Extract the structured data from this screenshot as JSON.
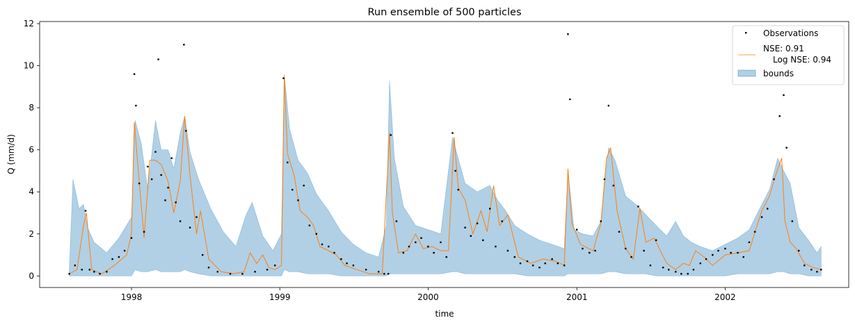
{
  "chart_data": {
    "type": "line",
    "title": "Run ensemble of 500 particles",
    "xlabel": "time",
    "ylabel": "Q (mm/d)",
    "xlim": [
      "1997-05-20",
      "2002-11-01"
    ],
    "ylim": [
      -0.55,
      12.1
    ],
    "grid": false,
    "legend_position": "top-right",
    "x_ticks": [
      {
        "date": "1998-01-01",
        "label": "1998"
      },
      {
        "date": "1999-01-01",
        "label": "1999"
      },
      {
        "date": "2000-01-01",
        "label": "2000"
      },
      {
        "date": "2001-01-01",
        "label": "2001"
      },
      {
        "date": "2002-01-01",
        "label": "2002"
      }
    ],
    "y_ticks": [
      0,
      2,
      4,
      6,
      8,
      10,
      12
    ],
    "legend": [
      {
        "label": "Observations",
        "kind": "marker"
      },
      {
        "label": "NSE: 0.91",
        "label2": "Log NSE: 0.94",
        "kind": "line"
      },
      {
        "label": "bounds",
        "kind": "patch"
      }
    ],
    "colors": {
      "observations": "#000000",
      "simulation": "#ff7f0e",
      "bounds_fill": "#1f77b4",
      "bounds_alpha": 0.35
    },
    "series_observations": {
      "x": [
        "1997-08-01",
        "1997-08-15",
        "1997-09-01",
        "1997-09-10",
        "1997-09-20",
        "1997-10-01",
        "1997-10-15",
        "1997-11-01",
        "1997-11-15",
        "1997-12-01",
        "1997-12-15",
        "1998-01-01",
        "1998-01-08",
        "1998-01-12",
        "1998-01-20",
        "1998-02-01",
        "1998-02-10",
        "1998-02-20",
        "1998-03-01",
        "1998-03-08",
        "1998-03-15",
        "1998-03-25",
        "1998-04-01",
        "1998-04-10",
        "1998-04-20",
        "1998-05-01",
        "1998-05-10",
        "1998-05-15",
        "1998-05-25",
        "1998-06-10",
        "1998-06-25",
        "1998-07-10",
        "1998-08-01",
        "1998-09-01",
        "1998-10-01",
        "1998-11-01",
        "1998-12-01",
        "1998-12-20",
        "1999-01-10",
        "1999-01-20",
        "1999-02-01",
        "1999-02-15",
        "1999-03-01",
        "1999-03-15",
        "1999-04-01",
        "1999-04-15",
        "1999-05-01",
        "1999-05-15",
        "1999-06-01",
        "1999-06-15",
        "1999-07-01",
        "1999-08-01",
        "1999-09-01",
        "1999-09-15",
        "1999-09-25",
        "1999-10-01",
        "1999-10-15",
        "1999-11-01",
        "1999-11-15",
        "1999-12-01",
        "1999-12-15",
        "2000-01-01",
        "2000-01-15",
        "2000-02-01",
        "2000-02-15",
        "2000-03-01",
        "2000-03-08",
        "2000-03-15",
        "2000-04-01",
        "2000-04-15",
        "2000-05-01",
        "2000-05-15",
        "2000-06-01",
        "2000-06-15",
        "2000-07-01",
        "2000-07-15",
        "2000-08-01",
        "2000-08-15",
        "2000-09-01",
        "2000-09-15",
        "2000-10-01",
        "2000-10-15",
        "2000-11-01",
        "2000-11-15",
        "2000-12-01",
        "2000-12-10",
        "2000-12-15",
        "2001-01-01",
        "2001-01-15",
        "2001-02-01",
        "2001-02-15",
        "2001-03-01",
        "2001-03-10",
        "2001-03-20",
        "2001-04-01",
        "2001-04-15",
        "2001-05-01",
        "2001-05-15",
        "2001-06-01",
        "2001-06-15",
        "2001-07-01",
        "2001-07-15",
        "2001-08-01",
        "2001-08-15",
        "2001-09-01",
        "2001-09-15",
        "2001-10-01",
        "2001-10-15",
        "2001-11-01",
        "2001-11-15",
        "2001-12-01",
        "2001-12-15",
        "2002-01-01",
        "2002-01-15",
        "2002-02-01",
        "2002-02-15",
        "2002-03-01",
        "2002-03-15",
        "2002-04-01",
        "2002-04-15",
        "2002-05-01",
        "2002-05-15",
        "2002-05-25",
        "2002-06-01",
        "2002-06-15",
        "2002-07-01",
        "2002-07-15",
        "2002-08-01",
        "2002-08-15",
        "2002-08-25"
      ],
      "y": [
        0.1,
        0.5,
        0.3,
        3.1,
        0.3,
        0.2,
        0.1,
        0.2,
        0.8,
        0.9,
        1.2,
        1.8,
        9.6,
        8.1,
        4.4,
        2.1,
        5.2,
        4.6,
        5.9,
        10.3,
        4.8,
        3.6,
        4.2,
        5.6,
        3.5,
        2.6,
        11.0,
        6.9,
        2.3,
        2.8,
        1.0,
        0.4,
        0.2,
        0.1,
        0.1,
        0.2,
        0.3,
        0.5,
        9.4,
        5.4,
        4.1,
        3.6,
        4.3,
        2.4,
        2.0,
        1.5,
        1.4,
        1.1,
        0.8,
        0.6,
        0.5,
        0.3,
        0.2,
        0.1,
        0.1,
        6.7,
        2.6,
        1.1,
        1.4,
        1.6,
        1.8,
        1.4,
        1.1,
        1.6,
        0.9,
        6.8,
        5.0,
        4.1,
        2.3,
        1.9,
        2.5,
        1.7,
        3.2,
        1.4,
        2.6,
        1.2,
        0.9,
        0.6,
        0.7,
        0.5,
        0.4,
        0.6,
        0.8,
        0.6,
        0.5,
        11.5,
        8.4,
        2.2,
        1.3,
        1.1,
        1.2,
        2.6,
        4.6,
        8.1,
        4.3,
        2.1,
        1.3,
        0.9,
        3.3,
        1.2,
        0.5,
        1.7,
        0.4,
        0.3,
        0.2,
        0.1,
        0.1,
        0.3,
        0.6,
        0.8,
        1.0,
        1.2,
        1.3,
        1.1,
        1.1,
        0.9,
        1.6,
        2.1,
        2.8,
        3.2,
        4.6,
        7.6,
        8.6,
        6.1,
        2.6,
        1.2,
        0.5,
        0.3,
        0.2,
        0.3
      ]
    },
    "series_simulation": {
      "name": "NSE: 0.91",
      "x": [
        "1997-08-01",
        "1997-08-20",
        "1997-09-05",
        "1997-09-12",
        "1997-09-25",
        "1997-10-20",
        "1997-11-20",
        "1997-12-20",
        "1998-01-01",
        "1998-01-08",
        "1998-01-20",
        "1998-02-01",
        "1998-02-15",
        "1998-03-01",
        "1998-03-15",
        "1998-04-01",
        "1998-04-15",
        "1998-05-01",
        "1998-05-12",
        "1998-05-25",
        "1998-06-10",
        "1998-06-20",
        "1998-07-10",
        "1998-08-10",
        "1998-09-10",
        "1998-10-05",
        "1998-10-20",
        "1998-11-05",
        "1998-11-20",
        "1998-12-05",
        "1998-12-20",
        "1999-01-05",
        "1999-01-12",
        "1999-01-20",
        "1999-02-05",
        "1999-02-20",
        "1999-03-10",
        "1999-03-25",
        "1999-04-10",
        "1999-05-01",
        "1999-05-20",
        "1999-06-10",
        "1999-07-10",
        "1999-08-10",
        "1999-09-10",
        "1999-09-28",
        "1999-10-05",
        "1999-10-20",
        "1999-11-10",
        "1999-12-01",
        "1999-12-20",
        "2000-01-10",
        "2000-02-01",
        "2000-02-20",
        "2000-03-05",
        "2000-03-15",
        "2000-04-01",
        "2000-04-20",
        "2000-05-10",
        "2000-05-25",
        "2000-06-10",
        "2000-06-25",
        "2000-07-15",
        "2000-08-10",
        "2000-09-10",
        "2000-10-10",
        "2000-11-10",
        "2000-12-01",
        "2000-12-10",
        "2000-12-20",
        "2001-01-10",
        "2001-02-10",
        "2001-03-01",
        "2001-03-15",
        "2001-03-25",
        "2001-04-10",
        "2001-05-01",
        "2001-05-20",
        "2001-06-05",
        "2001-06-20",
        "2001-07-10",
        "2001-08-10",
        "2001-09-01",
        "2001-09-20",
        "2001-10-05",
        "2001-10-20",
        "2001-11-10",
        "2001-12-01",
        "2002-01-01",
        "2002-02-01",
        "2002-03-01",
        "2002-04-01",
        "2002-04-20",
        "2002-05-05",
        "2002-05-20",
        "2002-05-28",
        "2002-06-10",
        "2002-06-25",
        "2002-07-15",
        "2002-08-05",
        "2002-08-25"
      ],
      "y": [
        0.1,
        0.3,
        2.4,
        3.0,
        0.3,
        0.1,
        0.5,
        1.0,
        2.0,
        7.3,
        4.5,
        1.8,
        5.5,
        5.5,
        5.3,
        4.5,
        3.0,
        4.5,
        7.6,
        4.8,
        2.0,
        3.1,
        0.8,
        0.2,
        0.1,
        0.2,
        1.1,
        0.6,
        1.0,
        0.4,
        0.3,
        0.5,
        9.5,
        5.8,
        4.8,
        3.1,
        2.8,
        2.4,
        1.4,
        1.2,
        1.0,
        0.5,
        0.3,
        0.1,
        0.1,
        6.8,
        3.0,
        1.1,
        1.2,
        2.0,
        1.3,
        1.4,
        1.2,
        1.2,
        6.6,
        4.2,
        3.6,
        2.0,
        3.1,
        2.1,
        4.3,
        2.4,
        2.9,
        0.9,
        0.6,
        0.8,
        0.7,
        0.5,
        5.1,
        2.5,
        1.5,
        1.2,
        2.5,
        5.6,
        6.1,
        3.1,
        1.3,
        0.8,
        3.2,
        1.6,
        1.8,
        0.6,
        0.3,
        0.6,
        0.5,
        1.2,
        0.9,
        0.5,
        1.0,
        1.1,
        1.2,
        3.1,
        3.8,
        4.8,
        5.6,
        2.6,
        1.6,
        1.3,
        0.6,
        0.4,
        0.3
      ]
    },
    "series_bounds": {
      "name": "bounds",
      "x": [
        "1997-08-01",
        "1997-08-10",
        "1997-08-25",
        "1997-09-05",
        "1997-09-15",
        "1997-10-01",
        "1997-11-01",
        "1997-12-01",
        "1998-01-01",
        "1998-01-10",
        "1998-01-25",
        "1998-02-10",
        "1998-03-01",
        "1998-03-15",
        "1998-04-01",
        "1998-04-15",
        "1998-05-01",
        "1998-05-12",
        "1998-05-25",
        "1998-06-15",
        "1998-07-15",
        "1998-08-15",
        "1998-09-15",
        "1998-10-10",
        "1998-10-25",
        "1998-11-20",
        "1998-12-15",
        "1999-01-05",
        "1999-01-12",
        "1999-01-25",
        "1999-02-15",
        "1999-03-10",
        "1999-04-01",
        "1999-05-01",
        "1999-06-01",
        "1999-07-01",
        "1999-08-01",
        "1999-09-01",
        "1999-09-20",
        "1999-09-28",
        "1999-10-10",
        "1999-11-01",
        "1999-12-01",
        "2000-01-01",
        "2000-02-01",
        "2000-03-01",
        "2000-03-12",
        "2000-04-01",
        "2000-05-01",
        "2000-06-01",
        "2000-06-20",
        "2000-07-10",
        "2000-08-01",
        "2000-09-01",
        "2000-10-01",
        "2000-11-01",
        "2000-12-01",
        "2000-12-10",
        "2000-12-25",
        "2001-01-15",
        "2001-02-10",
        "2001-03-01",
        "2001-03-20",
        "2001-04-05",
        "2001-05-01",
        "2001-06-01",
        "2001-06-20",
        "2001-07-15",
        "2001-08-10",
        "2001-09-01",
        "2001-09-20",
        "2001-10-10",
        "2001-11-01",
        "2001-12-01",
        "2002-01-01",
        "2002-02-01",
        "2002-03-01",
        "2002-04-01",
        "2002-04-20",
        "2002-05-10",
        "2002-05-25",
        "2002-06-10",
        "2002-07-01",
        "2002-07-25",
        "2002-08-15",
        "2002-08-25"
      ],
      "upper": [
        0.3,
        4.6,
        3.2,
        3.4,
        2.3,
        1.6,
        1.1,
        1.8,
        2.8,
        7.4,
        6.3,
        4.1,
        7.4,
        6.0,
        6.0,
        5.1,
        6.8,
        7.6,
        5.9,
        4.6,
        3.2,
        2.1,
        1.4,
        2.9,
        3.5,
        1.9,
        1.2,
        2.0,
        9.6,
        7.0,
        5.5,
        4.9,
        3.9,
        3.1,
        2.1,
        1.5,
        1.1,
        0.9,
        2.4,
        9.3,
        5.6,
        3.3,
        2.4,
        2.2,
        2.0,
        6.6,
        5.8,
        4.4,
        4.0,
        4.3,
        3.6,
        3.1,
        2.4,
        2.0,
        1.7,
        1.5,
        1.3,
        5.0,
        2.2,
        2.0,
        1.9,
        2.6,
        6.1,
        5.5,
        3.8,
        3.3,
        2.9,
        2.4,
        1.9,
        2.6,
        1.9,
        1.6,
        1.4,
        1.2,
        1.5,
        1.8,
        2.2,
        3.4,
        4.1,
        5.6,
        5.0,
        4.4,
        2.3,
        1.7,
        1.1,
        1.4
      ],
      "lower": [
        0.0,
        0.0,
        0.0,
        0.0,
        0.0,
        0.0,
        0.0,
        0.0,
        0.0,
        0.3,
        0.2,
        0.2,
        0.3,
        0.2,
        0.2,
        0.2,
        0.2,
        0.3,
        0.2,
        0.1,
        0.0,
        0.0,
        0.0,
        0.0,
        0.0,
        0.0,
        0.0,
        0.0,
        0.3,
        0.2,
        0.2,
        0.1,
        0.1,
        0.1,
        0.0,
        0.0,
        0.0,
        0.0,
        0.0,
        0.1,
        0.1,
        0.1,
        0.1,
        0.1,
        0.1,
        0.2,
        0.2,
        0.1,
        0.1,
        0.1,
        0.1,
        0.1,
        0.1,
        0.0,
        0.0,
        0.0,
        0.0,
        0.1,
        0.1,
        0.1,
        0.1,
        0.1,
        0.2,
        0.2,
        0.1,
        0.1,
        0.1,
        0.0,
        0.0,
        0.0,
        0.0,
        0.0,
        0.0,
        0.0,
        0.0,
        0.1,
        0.1,
        0.1,
        0.1,
        0.2,
        0.2,
        0.1,
        0.1,
        0.0,
        0.0,
        0.0
      ]
    }
  }
}
